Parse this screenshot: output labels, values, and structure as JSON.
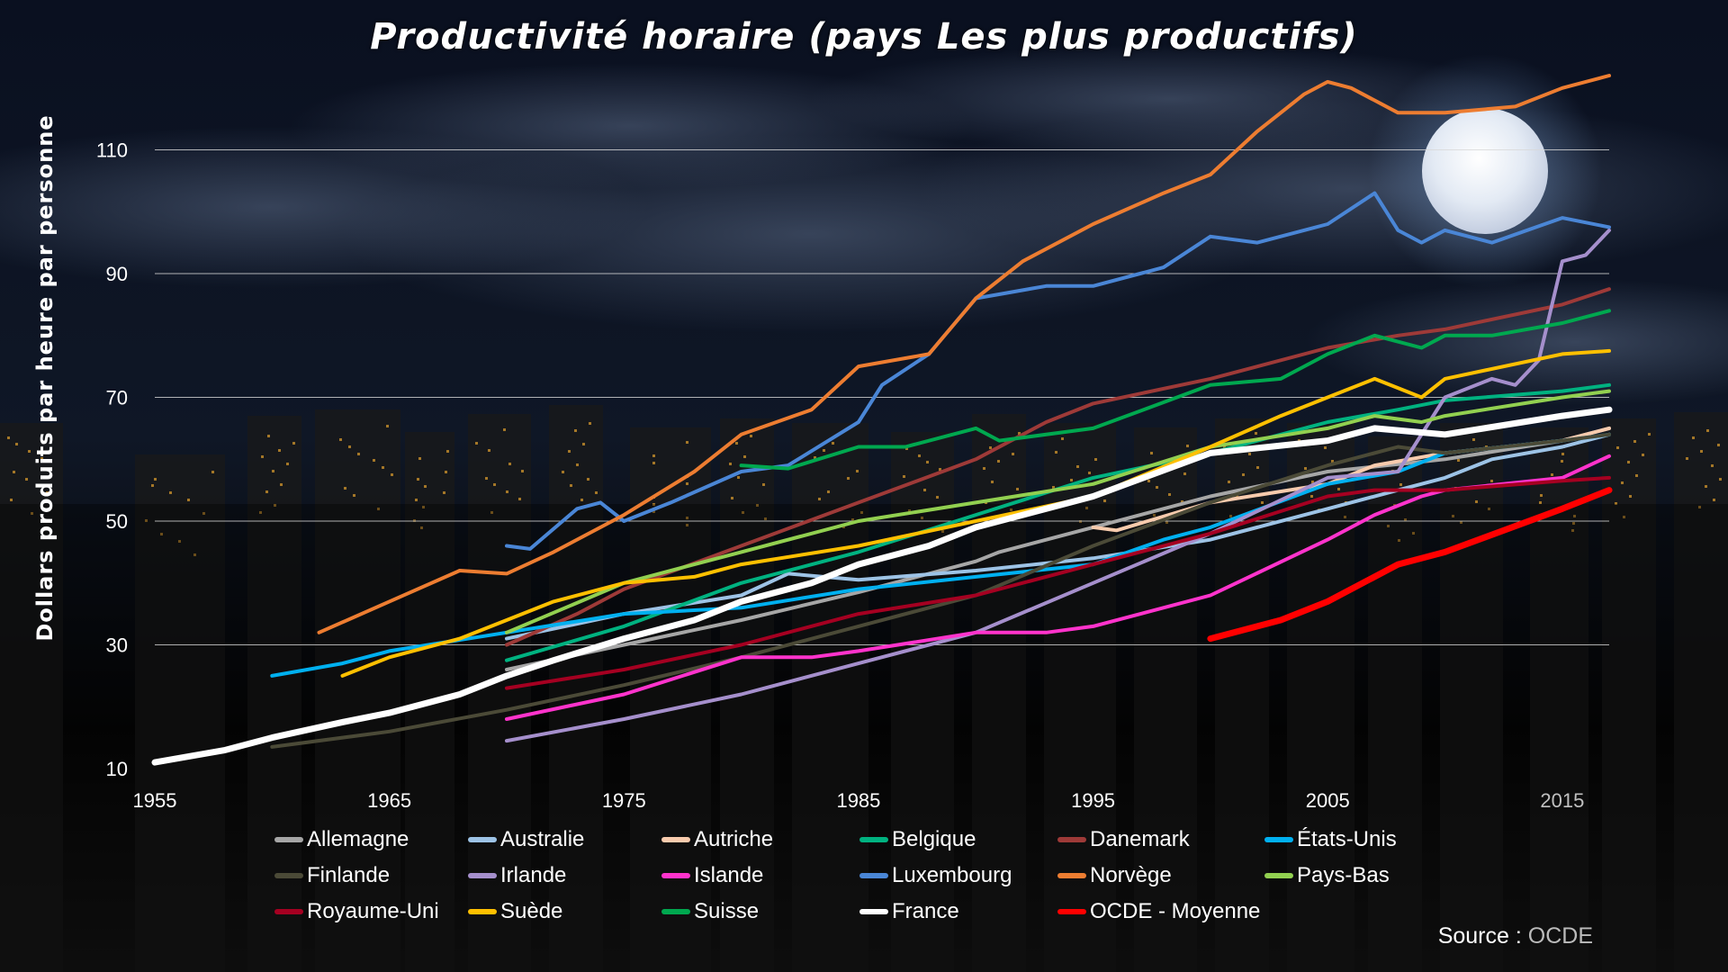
{
  "chart_data": {
    "type": "line",
    "title": "Productivité horaire (pays Les plus productifs)",
    "ylabel": "Dollars produits par heure par personne",
    "xlabel": "",
    "xlim": [
      1955,
      2017
    ],
    "ylim": [
      10,
      122
    ],
    "xticks": [
      1955,
      1965,
      1975,
      1985,
      1995,
      2005,
      2015
    ],
    "yticks": [
      10,
      30,
      50,
      70,
      90,
      110
    ],
    "grid": "horizontal",
    "legend_position": "bottom",
    "series": [
      {
        "name": "Allemagne",
        "color": "#a6a6a6",
        "width": 4,
        "points": [
          [
            1970,
            26
          ],
          [
            1975,
            30
          ],
          [
            1980,
            34
          ],
          [
            1985,
            38.5
          ],
          [
            1990,
            43.5
          ],
          [
            1991,
            45
          ],
          [
            1995,
            49
          ],
          [
            2000,
            54
          ],
          [
            2005,
            58
          ],
          [
            2010,
            60
          ],
          [
            2015,
            63
          ],
          [
            2017,
            65
          ]
        ]
      },
      {
        "name": "Australie",
        "color": "#9dc3e6",
        "width": 4,
        "points": [
          [
            1970,
            31
          ],
          [
            1975,
            35
          ],
          [
            1980,
            38
          ],
          [
            1982,
            41.5
          ],
          [
            1985,
            40.5
          ],
          [
            1990,
            42
          ],
          [
            1995,
            44
          ],
          [
            2000,
            47
          ],
          [
            2005,
            52
          ],
          [
            2008,
            55
          ],
          [
            2010,
            57
          ],
          [
            2012,
            60
          ],
          [
            2015,
            62
          ],
          [
            2017,
            64
          ]
        ]
      },
      {
        "name": "Autriche",
        "color": "#f8cbad",
        "width": 4,
        "points": [
          [
            1995,
            49
          ],
          [
            1996,
            48.5
          ],
          [
            2000,
            53
          ],
          [
            2005,
            56
          ],
          [
            2007,
            59
          ],
          [
            2010,
            61
          ],
          [
            2015,
            63
          ],
          [
            2017,
            65
          ]
        ]
      },
      {
        "name": "Belgique",
        "color": "#00b280",
        "width": 4,
        "points": [
          [
            1970,
            27.5
          ],
          [
            1975,
            33
          ],
          [
            1980,
            40
          ],
          [
            1985,
            45
          ],
          [
            1990,
            51
          ],
          [
            1995,
            57
          ],
          [
            2000,
            61
          ],
          [
            2005,
            66
          ],
          [
            2008,
            68
          ],
          [
            2010,
            69.5
          ],
          [
            2015,
            71
          ],
          [
            2017,
            72
          ]
        ]
      },
      {
        "name": "Danemark",
        "color": "#9e3a38",
        "width": 4,
        "points": [
          [
            1970,
            30
          ],
          [
            1973,
            35
          ],
          [
            1975,
            39
          ],
          [
            1980,
            46
          ],
          [
            1985,
            53
          ],
          [
            1990,
            60
          ],
          [
            1993,
            66
          ],
          [
            1995,
            69
          ],
          [
            2000,
            73
          ],
          [
            2005,
            78
          ],
          [
            2008,
            80
          ],
          [
            2010,
            81
          ],
          [
            2015,
            85
          ],
          [
            2017,
            87.5
          ]
        ]
      },
      {
        "name": "États-Unis",
        "color": "#00b0f0",
        "width": 4,
        "points": [
          [
            1960,
            25
          ],
          [
            1963,
            27
          ],
          [
            1965,
            29
          ],
          [
            1970,
            32
          ],
          [
            1975,
            35
          ],
          [
            1980,
            36
          ],
          [
            1985,
            39
          ],
          [
            1990,
            41
          ],
          [
            1995,
            43
          ],
          [
            1998,
            47
          ],
          [
            2000,
            49
          ],
          [
            2005,
            56
          ],
          [
            2008,
            58
          ],
          [
            2010,
            61
          ],
          [
            2015,
            63
          ],
          [
            2017,
            64
          ]
        ]
      },
      {
        "name": "Finlande",
        "color": "#4b4a37",
        "width": 4,
        "points": [
          [
            1960,
            13.5
          ],
          [
            1965,
            16
          ],
          [
            1970,
            19.5
          ],
          [
            1975,
            23.5
          ],
          [
            1980,
            28
          ],
          [
            1985,
            33
          ],
          [
            1990,
            38
          ],
          [
            1995,
            46
          ],
          [
            2000,
            53
          ],
          [
            2005,
            59
          ],
          [
            2008,
            62
          ],
          [
            2010,
            61
          ],
          [
            2015,
            63
          ],
          [
            2017,
            64
          ]
        ]
      },
      {
        "name": "Irlande",
        "color": "#a58fcc",
        "width": 4,
        "points": [
          [
            1970,
            14.5
          ],
          [
            1975,
            18
          ],
          [
            1980,
            22
          ],
          [
            1985,
            27
          ],
          [
            1990,
            32
          ],
          [
            1995,
            40
          ],
          [
            2000,
            48
          ],
          [
            2005,
            57
          ],
          [
            2008,
            58
          ],
          [
            2010,
            70
          ],
          [
            2012,
            73
          ],
          [
            2013,
            72
          ],
          [
            2014,
            76
          ],
          [
            2015,
            92
          ],
          [
            2016,
            93
          ],
          [
            2017,
            97
          ]
        ]
      },
      {
        "name": "Islande",
        "color": "#ff33cc",
        "width": 4,
        "points": [
          [
            1970,
            18
          ],
          [
            1975,
            22
          ],
          [
            1980,
            28
          ],
          [
            1983,
            28
          ],
          [
            1985,
            29
          ],
          [
            1990,
            32
          ],
          [
            1993,
            32
          ],
          [
            1995,
            33
          ],
          [
            2000,
            38
          ],
          [
            2005,
            47
          ],
          [
            2007,
            51
          ],
          [
            2009,
            54
          ],
          [
            2010,
            55
          ],
          [
            2015,
            57
          ],
          [
            2017,
            60.5
          ]
        ]
      },
      {
        "name": "Luxembourg",
        "color": "#4a86d6",
        "width": 4,
        "points": [
          [
            1970,
            46
          ],
          [
            1971,
            45.5
          ],
          [
            1973,
            52
          ],
          [
            1974,
            53
          ],
          [
            1975,
            50
          ],
          [
            1977,
            53
          ],
          [
            1980,
            58
          ],
          [
            1982,
            59
          ],
          [
            1985,
            66
          ],
          [
            1986,
            72
          ],
          [
            1988,
            77
          ],
          [
            1990,
            86
          ],
          [
            1993,
            88
          ],
          [
            1995,
            88
          ],
          [
            1998,
            91
          ],
          [
            2000,
            96
          ],
          [
            2002,
            95
          ],
          [
            2005,
            98
          ],
          [
            2007,
            103
          ],
          [
            2008,
            97
          ],
          [
            2009,
            95
          ],
          [
            2010,
            97
          ],
          [
            2012,
            95
          ],
          [
            2015,
            99
          ],
          [
            2017,
            97.5
          ]
        ]
      },
      {
        "name": "Norvège",
        "color": "#ed7d31",
        "width": 4,
        "points": [
          [
            1962,
            32
          ],
          [
            1965,
            37
          ],
          [
            1968,
            42
          ],
          [
            1970,
            41.5
          ],
          [
            1972,
            45
          ],
          [
            1975,
            51
          ],
          [
            1978,
            58
          ],
          [
            1980,
            64
          ],
          [
            1983,
            68
          ],
          [
            1985,
            75
          ],
          [
            1988,
            77
          ],
          [
            1990,
            86
          ],
          [
            1992,
            92
          ],
          [
            1995,
            98
          ],
          [
            1998,
            103
          ],
          [
            2000,
            106
          ],
          [
            2002,
            113
          ],
          [
            2004,
            119
          ],
          [
            2005,
            121
          ],
          [
            2006,
            120
          ],
          [
            2008,
            116
          ],
          [
            2010,
            116
          ],
          [
            2013,
            117
          ],
          [
            2015,
            120
          ],
          [
            2017,
            122
          ]
        ]
      },
      {
        "name": "Pays-Bas",
        "color": "#92d050",
        "width": 4,
        "points": [
          [
            1970,
            32
          ],
          [
            1975,
            40
          ],
          [
            1978,
            43
          ],
          [
            1980,
            45
          ],
          [
            1985,
            50
          ],
          [
            1990,
            53
          ],
          [
            1995,
            56
          ],
          [
            2000,
            62
          ],
          [
            2005,
            65
          ],
          [
            2007,
            67
          ],
          [
            2009,
            66
          ],
          [
            2010,
            67
          ],
          [
            2015,
            70
          ],
          [
            2017,
            71
          ]
        ]
      },
      {
        "name": "Royaume-Uni",
        "color": "#a50021",
        "width": 4,
        "points": [
          [
            1970,
            23
          ],
          [
            1975,
            26
          ],
          [
            1980,
            30
          ],
          [
            1985,
            35
          ],
          [
            1990,
            38
          ],
          [
            1995,
            43
          ],
          [
            2000,
            48
          ],
          [
            2005,
            54
          ],
          [
            2007,
            55
          ],
          [
            2010,
            55
          ],
          [
            2015,
            56.5
          ],
          [
            2017,
            57
          ]
        ]
      },
      {
        "name": "Suède",
        "color": "#ffc000",
        "width": 4,
        "points": [
          [
            1963,
            25
          ],
          [
            1965,
            28
          ],
          [
            1968,
            31
          ],
          [
            1970,
            34
          ],
          [
            1972,
            37
          ],
          [
            1975,
            40
          ],
          [
            1978,
            41
          ],
          [
            1980,
            43
          ],
          [
            1985,
            46
          ],
          [
            1990,
            50
          ],
          [
            1995,
            54
          ],
          [
            2000,
            62
          ],
          [
            2003,
            67
          ],
          [
            2005,
            70
          ],
          [
            2007,
            73
          ],
          [
            2009,
            70
          ],
          [
            2010,
            73
          ],
          [
            2015,
            77
          ],
          [
            2017,
            77.5
          ]
        ]
      },
      {
        "name": "Suisse",
        "color": "#00a84f",
        "width": 4,
        "points": [
          [
            1980,
            59
          ],
          [
            1982,
            58.5
          ],
          [
            1985,
            62
          ],
          [
            1987,
            62
          ],
          [
            1990,
            65
          ],
          [
            1991,
            63
          ],
          [
            1995,
            65
          ],
          [
            2000,
            72
          ],
          [
            2003,
            73
          ],
          [
            2005,
            77
          ],
          [
            2007,
            80
          ],
          [
            2009,
            78
          ],
          [
            2010,
            80
          ],
          [
            2012,
            80
          ],
          [
            2015,
            82
          ],
          [
            2017,
            84
          ]
        ]
      },
      {
        "name": "France",
        "color": "#ffffff",
        "width": 7,
        "points": [
          [
            1955,
            11
          ],
          [
            1958,
            13
          ],
          [
            1960,
            15
          ],
          [
            1963,
            17.5
          ],
          [
            1965,
            19
          ],
          [
            1968,
            22
          ],
          [
            1970,
            25
          ],
          [
            1972,
            27.5
          ],
          [
            1975,
            31
          ],
          [
            1978,
            34
          ],
          [
            1980,
            37
          ],
          [
            1983,
            40
          ],
          [
            1985,
            43
          ],
          [
            1988,
            46
          ],
          [
            1990,
            49
          ],
          [
            1995,
            54
          ],
          [
            2000,
            61
          ],
          [
            2005,
            63
          ],
          [
            2007,
            65
          ],
          [
            2010,
            64
          ],
          [
            2015,
            67
          ],
          [
            2017,
            68
          ]
        ]
      },
      {
        "name": "OCDE - Moyenne",
        "color": "#ff0000",
        "width": 7,
        "points": [
          [
            2000,
            31
          ],
          [
            2003,
            34
          ],
          [
            2005,
            37
          ],
          [
            2008,
            43
          ],
          [
            2010,
            45
          ],
          [
            2015,
            52
          ],
          [
            2017,
            55
          ]
        ]
      }
    ]
  },
  "source": {
    "label": "Source",
    "sep": " : ",
    "value": "OCDE"
  }
}
